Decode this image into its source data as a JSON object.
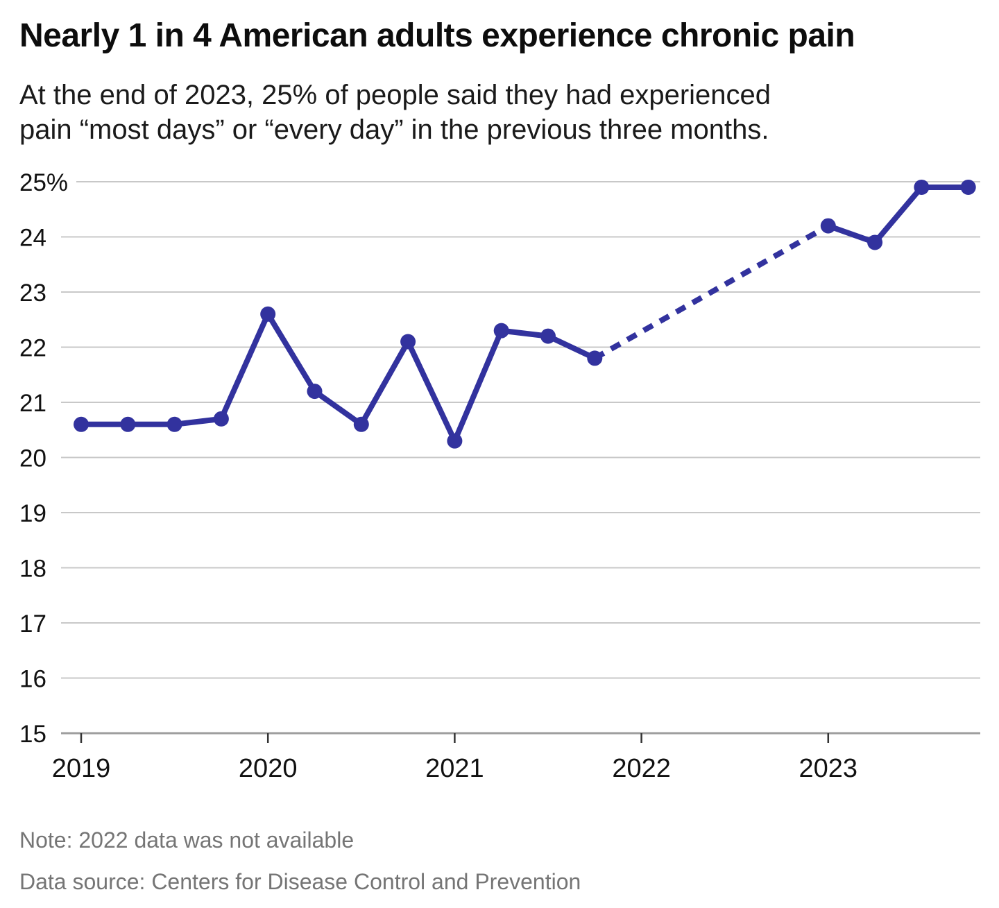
{
  "header": {
    "title": "Nearly 1 in 4 American adults experience chronic pain",
    "subtitle_line1": "At the end of 2023, 25% of people said they had experienced",
    "subtitle_line2": "pain “most days” or “every day” in the previous three months."
  },
  "footer": {
    "note": "Note: 2022 data was not available",
    "source": "Data source: Centers for Disease Control and Prevention"
  },
  "colors": {
    "line": "#32329e",
    "gridline": "#c8c8c8",
    "axis_line": "#9e9e9e",
    "tick": "#333333",
    "axis_label": "#111111",
    "muted_text": "#757575"
  },
  "chart_data": {
    "type": "line",
    "title": "Nearly 1 in 4 American adults experience chronic pain",
    "x_unit": "quarter",
    "points": [
      {
        "date": "2019 Q1",
        "q": 0,
        "value": 20.6
      },
      {
        "date": "2019 Q2",
        "q": 1,
        "value": 20.6
      },
      {
        "date": "2019 Q3",
        "q": 2,
        "value": 20.6
      },
      {
        "date": "2019 Q4",
        "q": 3,
        "value": 20.7
      },
      {
        "date": "2020 Q1",
        "q": 4,
        "value": 22.6
      },
      {
        "date": "2020 Q2",
        "q": 5,
        "value": 21.2
      },
      {
        "date": "2020 Q3",
        "q": 6,
        "value": 20.6
      },
      {
        "date": "2020 Q4",
        "q": 7,
        "value": 22.1
      },
      {
        "date": "2021 Q1",
        "q": 8,
        "value": 20.3
      },
      {
        "date": "2021 Q2",
        "q": 9,
        "value": 22.3
      },
      {
        "date": "2021 Q3",
        "q": 10,
        "value": 22.2
      },
      {
        "date": "2021 Q4",
        "q": 11,
        "value": 21.8
      },
      {
        "date": "2023 Q1",
        "q": 16,
        "value": 24.2
      },
      {
        "date": "2023 Q2",
        "q": 17,
        "value": 23.9
      },
      {
        "date": "2023 Q3",
        "q": 18,
        "value": 24.9
      },
      {
        "date": "2023 Q4",
        "q": 19,
        "value": 24.9
      }
    ],
    "dashed_gap": {
      "from": "2021 Q4",
      "to": "2023 Q1"
    },
    "y_axis": {
      "min": 15,
      "max": 25,
      "tick_step": 1,
      "tick_labels": [
        "15",
        "16",
        "17",
        "18",
        "19",
        "20",
        "21",
        "22",
        "23",
        "24",
        "25%"
      ]
    },
    "x_axis": {
      "tick_labels": [
        "2019",
        "2020",
        "2021",
        "2022",
        "2023"
      ],
      "ticks_q": [
        0,
        4,
        8,
        12,
        16
      ]
    },
    "grid": true,
    "legend": false
  }
}
